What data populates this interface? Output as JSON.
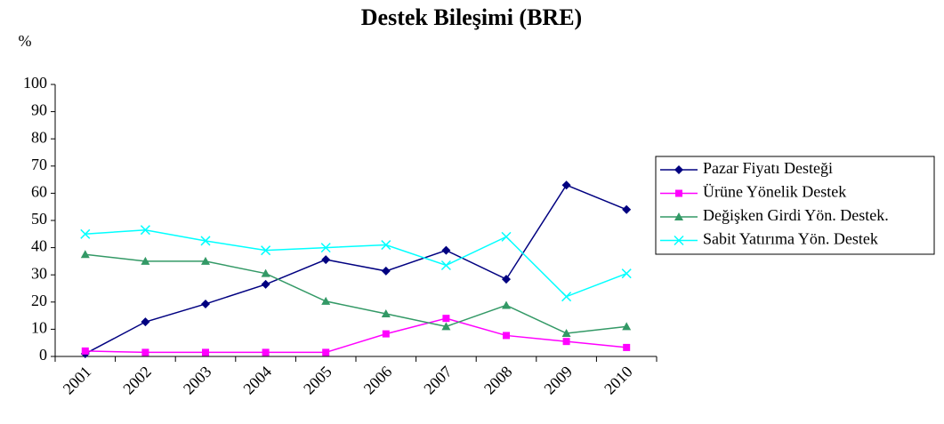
{
  "chart_data": {
    "type": "line",
    "title": "Destek Bileşimi (BRE)",
    "y_label": "%",
    "categories": [
      "2001",
      "2002",
      "2003",
      "2004",
      "2005",
      "2006",
      "2007",
      "2008",
      "2009",
      "2010"
    ],
    "series": [
      {
        "name": "Pazar Fiyatı Desteği",
        "color": "#000080",
        "marker": "diamond",
        "values": [
          1,
          12.7,
          19.3,
          26.5,
          35.6,
          31.4,
          39,
          28.4,
          63,
          54
        ]
      },
      {
        "name": "Ürüne Yönelik Destek",
        "color": "#ff00ff",
        "marker": "square",
        "values": [
          2,
          1.5,
          1.5,
          1.5,
          1.5,
          8.3,
          14,
          7.7,
          5.5,
          3.3
        ]
      },
      {
        "name": "Değişken Girdi Yön. Destek.",
        "color": "#339966",
        "marker": "triangle",
        "values": [
          37.5,
          35,
          35,
          30.5,
          20.3,
          15.7,
          11,
          18.8,
          8.5,
          11
        ]
      },
      {
        "name": "Sabit Yatırıma Yön. Destek",
        "color": "#00ffff",
        "marker": "x",
        "values": [
          45,
          46.5,
          42.5,
          39,
          40,
          41,
          33.5,
          44,
          22,
          30.5
        ]
      }
    ],
    "ylim": [
      0,
      100
    ],
    "yticks": [
      0,
      10,
      20,
      30,
      40,
      50,
      60,
      70,
      80,
      90,
      100
    ],
    "legend": "right"
  }
}
